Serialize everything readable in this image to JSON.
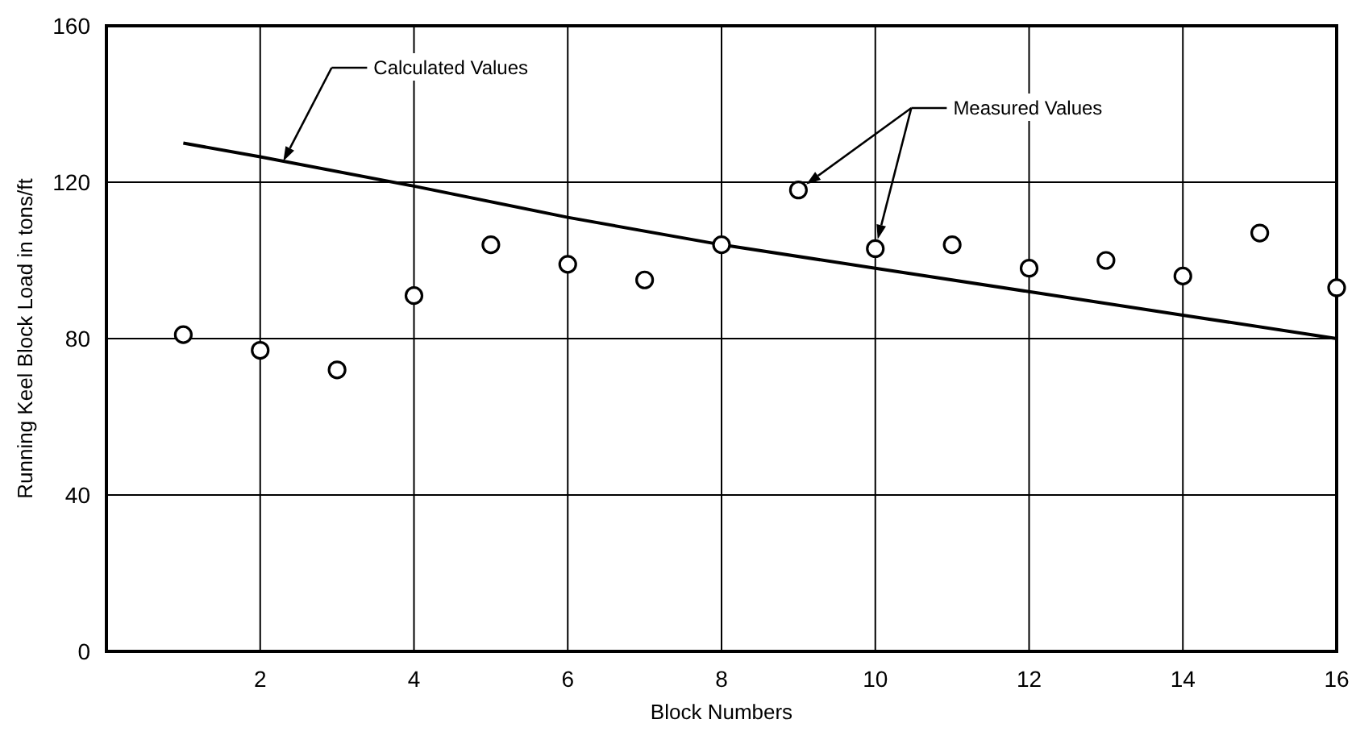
{
  "chart_data": {
    "type": "scatter",
    "xlabel": "Block Numbers",
    "ylabel": "Running Keel Block Load in tons/ft",
    "xlim": [
      0,
      16
    ],
    "ylim": [
      0,
      160
    ],
    "xticks": [
      2,
      4,
      6,
      8,
      10,
      12,
      14,
      16
    ],
    "yticks": [
      0,
      40,
      80,
      120,
      160
    ],
    "grid": true,
    "marker": "circle",
    "annotations": [
      "Calculated Values",
      "Measured Values"
    ],
    "series": [
      {
        "type": "line",
        "color": "#000000",
        "marker": "none",
        "line_style": "solid",
        "x": [
          1,
          2,
          4,
          6,
          8,
          10,
          12,
          14,
          16
        ],
        "values": [
          130,
          126.5,
          119,
          111,
          104,
          98,
          92,
          86,
          80
        ]
      },
      {
        "color": "#000000",
        "x": [
          1,
          2,
          3,
          4,
          5,
          6,
          7,
          8,
          9,
          10,
          11,
          12,
          13,
          14,
          15,
          16
        ],
        "values": [
          81,
          77,
          72,
          91,
          104,
          99,
          95,
          104,
          118,
          103,
          104,
          98,
          100,
          96,
          107,
          93
        ]
      }
    ]
  }
}
